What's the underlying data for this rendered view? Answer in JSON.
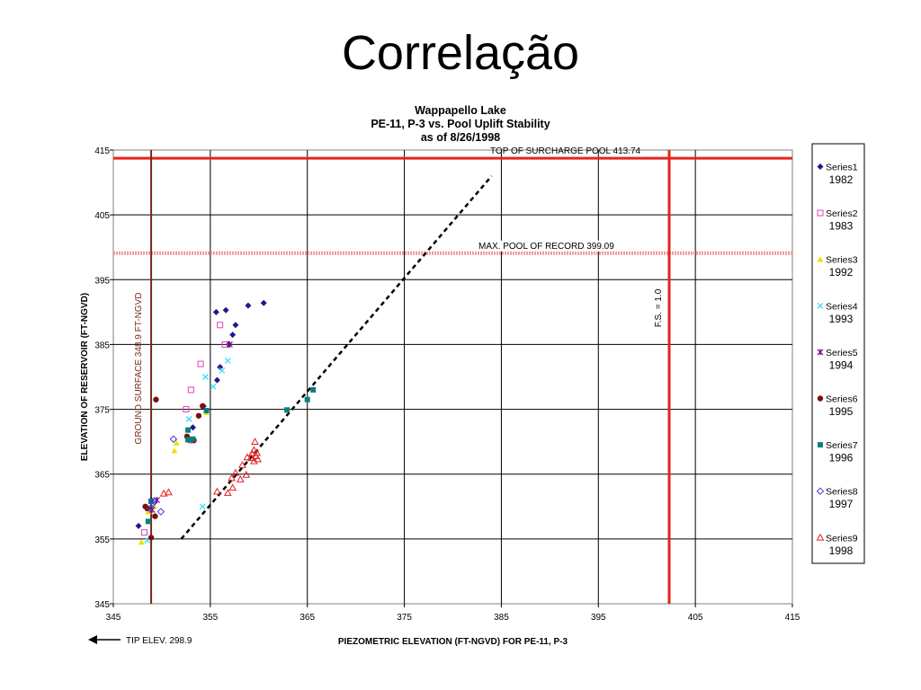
{
  "slide": {
    "title": "Correlação"
  },
  "chart_data": {
    "type": "scatter",
    "title": [
      "Wappapello Lake",
      "PE-11, P-3 vs. Pool Uplift Stability",
      "as of 8/26/1998"
    ],
    "xlabel": "PIEZOMETRIC ELEVATION (FT-NGVD) FOR PE-11, P-3",
    "ylabel": "ELEVATION OF RESERVOIR (FT-NGVD)",
    "xlim": [
      345,
      415
    ],
    "ylim": [
      345,
      415
    ],
    "xticks": [
      "345",
      "355",
      "365",
      "375",
      "385",
      "395",
      "405",
      "415"
    ],
    "yticks": [
      "345",
      "355",
      "365",
      "375",
      "385",
      "395",
      "405",
      "415"
    ],
    "grid": true,
    "legend_position": "right",
    "annotations": {
      "surcharge": {
        "text": "TOP OF SURCHARGE POOL 413.74",
        "y": 413.74,
        "color": "#e8231c"
      },
      "max_pool": {
        "text": "MAX. POOL OF RECORD 399.09",
        "y": 399.09,
        "color": "#f29a9a"
      },
      "fs": {
        "text": "F.S. = 1.0",
        "x": 402.3,
        "color": "#e8231c"
      },
      "ground": {
        "text": "GROUND SURFACE 348.9 FT-NGVD",
        "x": 348.9,
        "color": "#7a2a1a"
      },
      "tip": {
        "text": "TIP ELEV. 298.9"
      }
    },
    "trendline": {
      "from": [
        352,
        355
      ],
      "to": [
        384,
        411
      ]
    },
    "series": [
      {
        "name": "Series1",
        "year": "1982",
        "marker": "diamond",
        "color": "#1a1a8c",
        "points": [
          [
            347.6,
            357
          ],
          [
            355.6,
            390
          ],
          [
            356.6,
            390.3
          ],
          [
            358.9,
            391
          ],
          [
            360.5,
            391.4
          ],
          [
            357.6,
            388
          ],
          [
            357.3,
            386.5
          ],
          [
            356.9,
            385
          ],
          [
            356,
            381.5
          ],
          [
            355.7,
            379.5
          ],
          [
            353.2,
            372.2
          ],
          [
            354.3,
            375.5
          ],
          [
            348.9,
            361
          ]
        ]
      },
      {
        "name": "Series2",
        "year": "1983",
        "marker": "square-open",
        "color": "#e040c0",
        "points": [
          [
            356,
            388
          ],
          [
            354,
            382
          ],
          [
            353,
            378
          ],
          [
            352.5,
            375
          ],
          [
            356.5,
            385
          ],
          [
            348.2,
            356
          ]
        ]
      },
      {
        "name": "Series3",
        "year": "1992",
        "marker": "triangle",
        "color": "#f0e000",
        "points": [
          [
            347.9,
            354.5
          ],
          [
            351.3,
            368.6
          ],
          [
            351.5,
            369.8
          ],
          [
            354.6,
            374.5
          ],
          [
            348.6,
            359.2
          ],
          [
            349.2,
            360
          ]
        ]
      },
      {
        "name": "Series4",
        "year": "1993",
        "marker": "x",
        "color": "#40d8ff",
        "points": [
          [
            354.5,
            380
          ],
          [
            356.8,
            382.5
          ],
          [
            355.3,
            378.5
          ],
          [
            352.8,
            373.5
          ],
          [
            354.2,
            360
          ],
          [
            348.5,
            354.8
          ],
          [
            356.2,
            381
          ]
        ]
      },
      {
        "name": "Series5",
        "year": "1994",
        "marker": "star",
        "color": "#800080",
        "points": [
          [
            357,
            385
          ],
          [
            349.5,
            361
          ],
          [
            353,
            370.2
          ],
          [
            349,
            359.5
          ]
        ]
      },
      {
        "name": "Series6",
        "year": "1995",
        "marker": "circle",
        "color": "#7a1010",
        "points": [
          [
            349.4,
            376.5
          ],
          [
            354.2,
            375.5
          ],
          [
            353.8,
            374
          ],
          [
            353.3,
            370.2
          ],
          [
            352.6,
            370.8
          ],
          [
            348.3,
            360
          ],
          [
            348.5,
            359.7
          ],
          [
            349.3,
            358.5
          ],
          [
            348.9,
            355.2
          ]
        ]
      },
      {
        "name": "Series7",
        "year": "1996",
        "marker": "square",
        "color": "#0a8080",
        "points": [
          [
            365.6,
            378
          ],
          [
            365,
            376.5
          ],
          [
            362.9,
            374.9
          ],
          [
            354.6,
            374.8
          ],
          [
            352.7,
            371.8
          ],
          [
            352.7,
            370.3
          ],
          [
            353.2,
            370.4
          ],
          [
            348.6,
            357.7
          ],
          [
            348.9,
            360.8
          ]
        ]
      },
      {
        "name": "Series8",
        "year": "1997",
        "marker": "diamond-open",
        "color": "#3a3ad0",
        "points": [
          [
            351.2,
            370.4
          ],
          [
            349.9,
            359.2
          ],
          [
            349.2,
            360.8
          ],
          [
            348.8,
            359.7
          ],
          [
            349.1,
            360.5
          ]
        ]
      },
      {
        "name": "Series9",
        "year": "1998",
        "marker": "triangle-open",
        "color": "#e02020",
        "points": [
          [
            350.2,
            362
          ],
          [
            350.7,
            362.2
          ],
          [
            355.7,
            362.3
          ],
          [
            356.8,
            362.1
          ],
          [
            357.3,
            362.9
          ],
          [
            357.6,
            365.2
          ],
          [
            358.1,
            364.2
          ],
          [
            358.3,
            366.4
          ],
          [
            357.2,
            364.4
          ],
          [
            358.7,
            364.9
          ],
          [
            359.2,
            367.5
          ],
          [
            359.5,
            367
          ],
          [
            359.8,
            368.3
          ],
          [
            359.6,
            370
          ],
          [
            358.8,
            367.6
          ],
          [
            359.5,
            368.7
          ],
          [
            359.9,
            367.3
          ],
          [
            359.3,
            368.2
          ],
          [
            359.7,
            367.8
          ]
        ]
      }
    ]
  }
}
